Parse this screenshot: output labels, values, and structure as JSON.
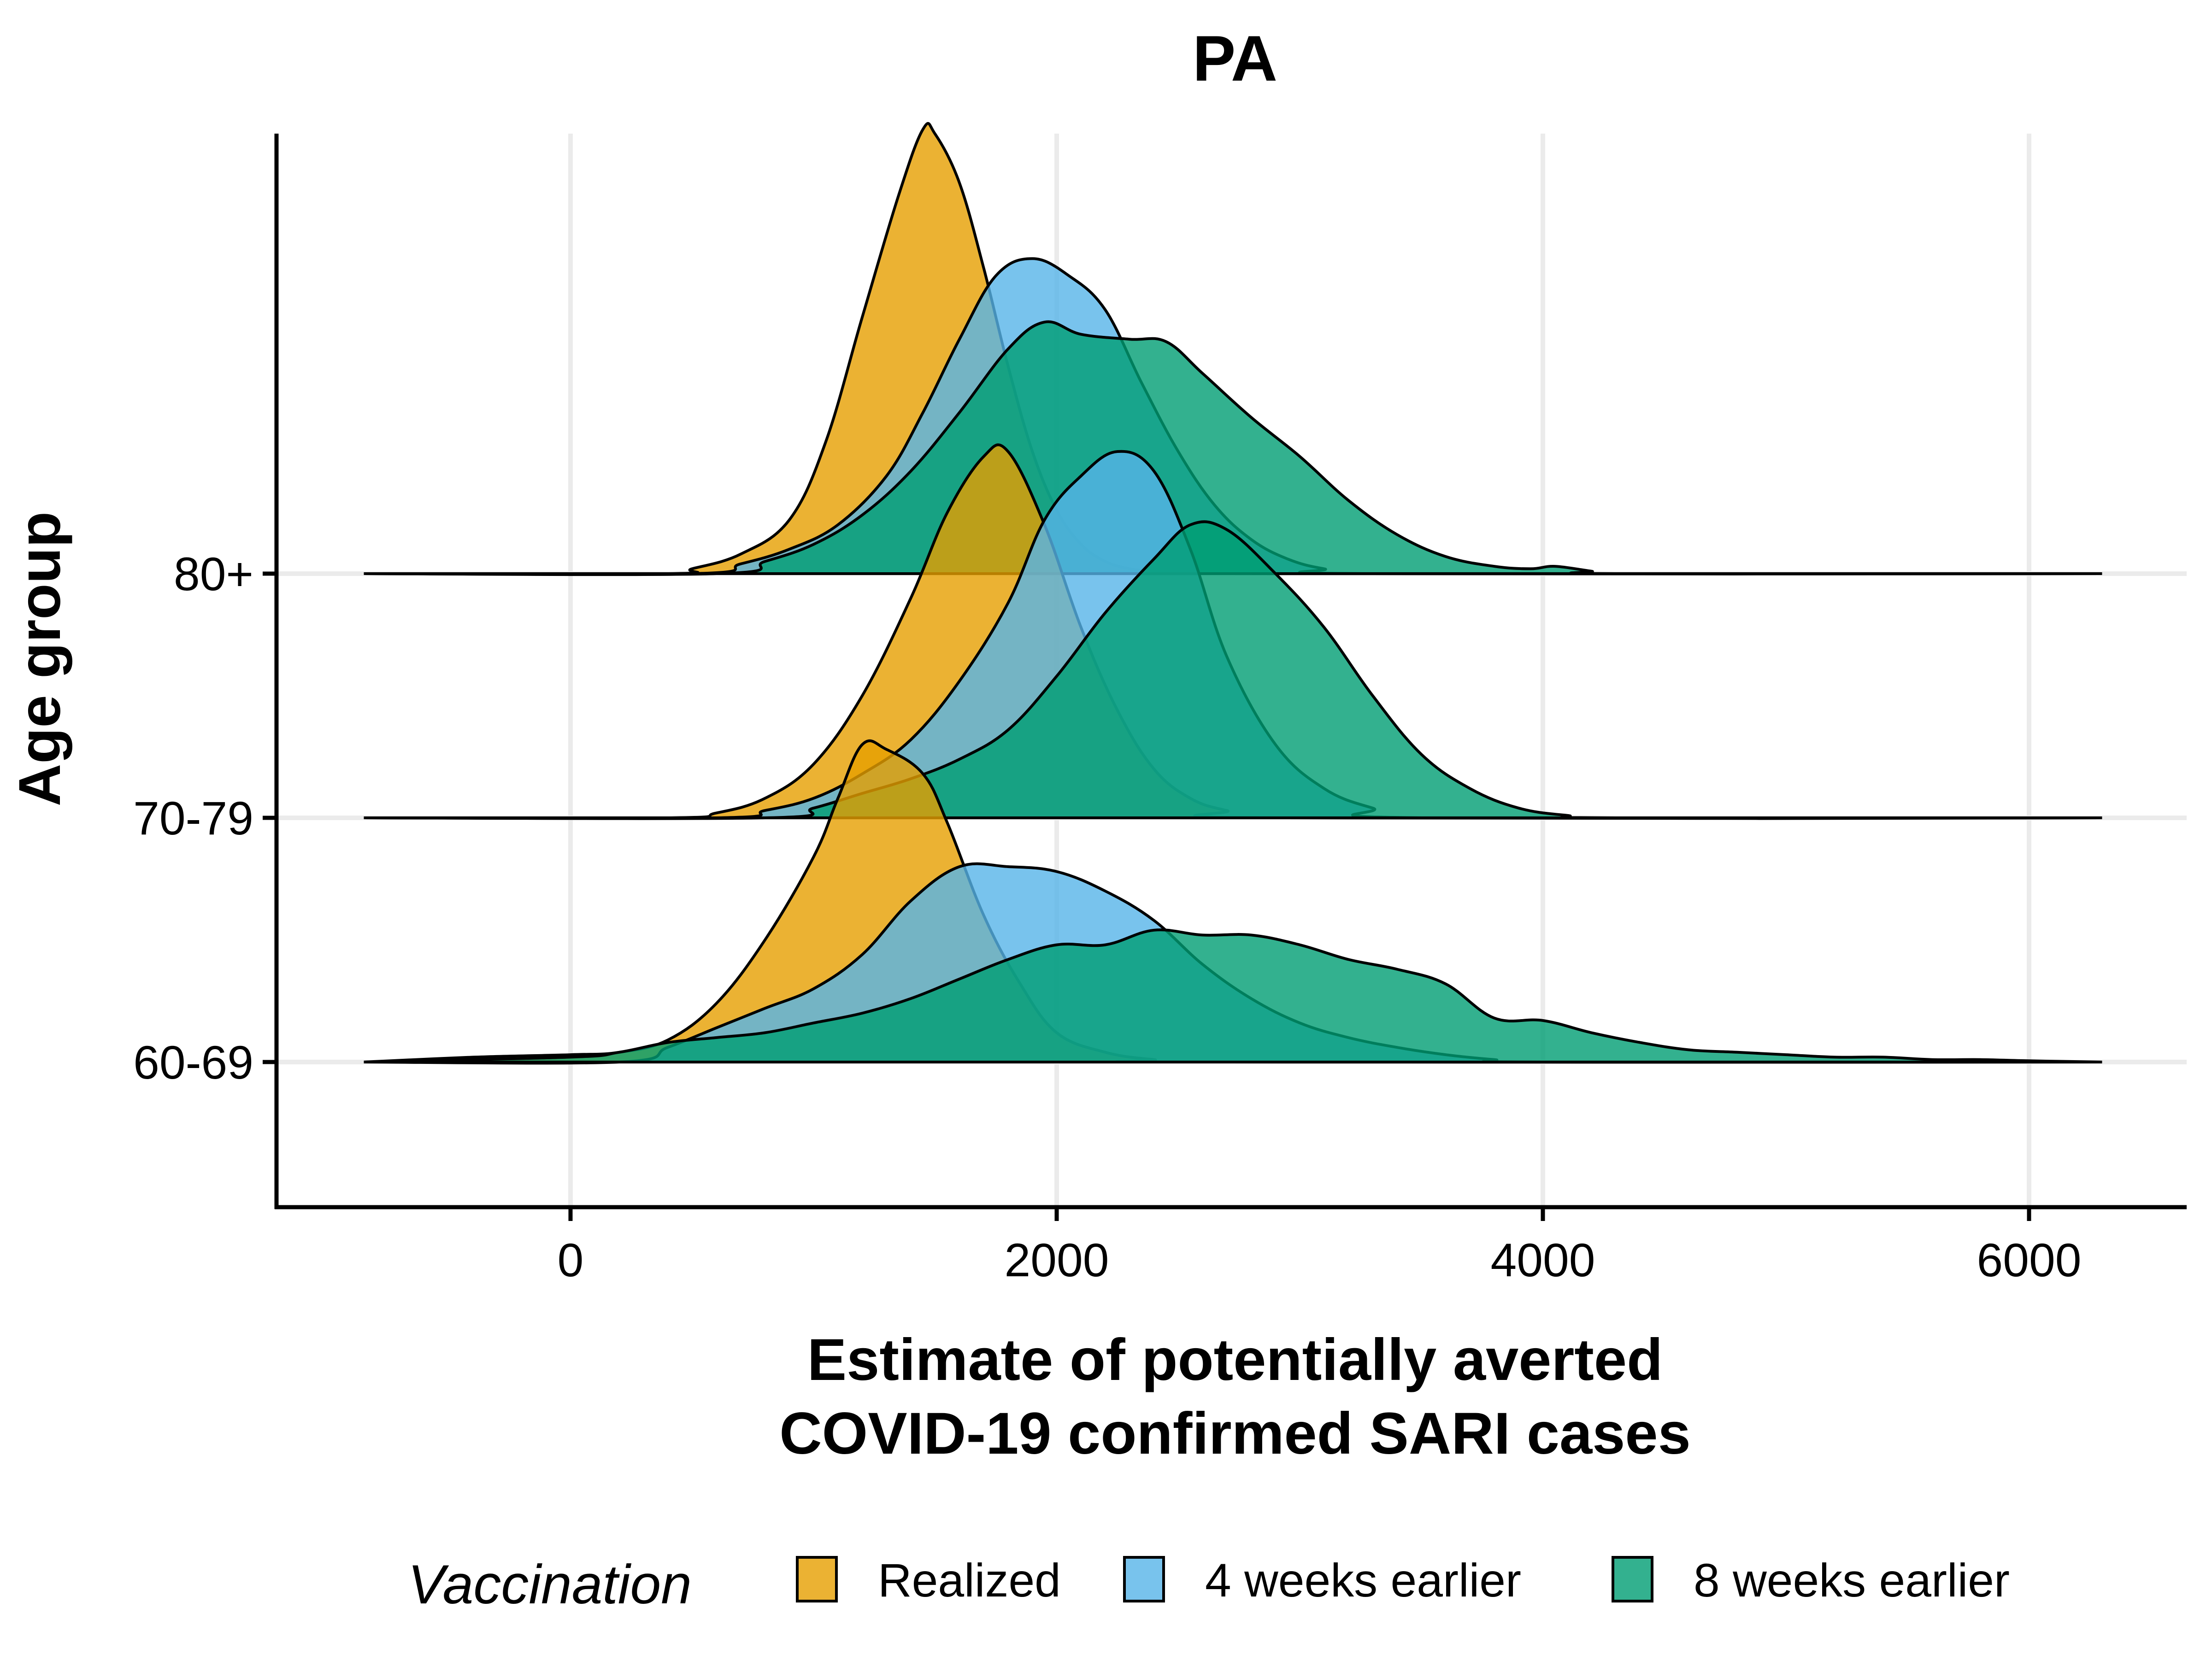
{
  "chart_data": {
    "type": "area",
    "subtype": "ridgeline",
    "title": "PA",
    "xlabel_lines": [
      "Estimate of potentially averted",
      "COVID-19 confirmed SARI cases"
    ],
    "ylabel": "Age group",
    "xlim": [
      -1200,
      6400
    ],
    "x_ticks": [
      0,
      2000,
      4000,
      6000
    ],
    "x_tick_labels": [
      "0",
      "2000",
      "4000",
      "6000"
    ],
    "baseline_x_range": [
      -850,
      6300
    ],
    "grid": true,
    "legend": {
      "title": "Vaccination",
      "position": "bottom",
      "items": [
        {
          "label": "Realized",
          "series": "realized"
        },
        {
          "label": "4 weeks earlier",
          "series": "w4"
        },
        {
          "label": "8 weeks earlier",
          "series": "w8"
        }
      ]
    },
    "colors": {
      "realized": "#E69F00",
      "w4": "#56B4E9",
      "w8": "#009E73"
    },
    "opacity": 0.8,
    "categories": [
      "80+",
      "70-79",
      "60-69"
    ],
    "density_scale_note": "y values are relative density heights in units of the spacing between groups",
    "groups": [
      {
        "category": "80+",
        "series": [
          {
            "key": "realized",
            "x": [
              -850,
              400,
              500,
              700,
              900,
              1050,
              1200,
              1350,
              1450,
              1500,
              1600,
              1700,
              1800,
              1900,
              2000,
              2100,
              2200,
              2300,
              2400,
              2500,
              6300
            ],
            "y": [
              0,
              0,
              0.02,
              0.08,
              0.22,
              0.54,
              1.05,
              1.55,
              1.82,
              1.8,
              1.6,
              1.25,
              0.85,
              0.5,
              0.26,
              0.12,
              0.05,
              0.02,
              0.01,
              0,
              0
            ]
          },
          {
            "key": "w4",
            "x": [
              -850,
              500,
              700,
              900,
              1100,
              1300,
              1450,
              1600,
              1750,
              1900,
              2050,
              2200,
              2350,
              2500,
              2650,
              2800,
              2950,
              3100,
              3300,
              6300
            ],
            "y": [
              0,
              0,
              0.04,
              0.1,
              0.2,
              0.4,
              0.66,
              0.96,
              1.22,
              1.29,
              1.22,
              1.08,
              0.78,
              0.5,
              0.28,
              0.14,
              0.06,
              0.02,
              0,
              0
            ]
          },
          {
            "key": "w8",
            "x": [
              -850,
              600,
              800,
              1000,
              1200,
              1400,
              1600,
              1800,
              1950,
              2100,
              2300,
              2450,
              2600,
              2800,
              3000,
              3200,
              3400,
              3600,
              3800,
              3950,
              4050,
              4200,
              4300,
              6300
            ],
            "y": [
              0,
              0,
              0.05,
              0.12,
              0.24,
              0.42,
              0.66,
              0.92,
              1.03,
              0.98,
              0.96,
              0.95,
              0.82,
              0.64,
              0.48,
              0.3,
              0.16,
              0.07,
              0.03,
              0.02,
              0.03,
              0.01,
              0,
              0
            ]
          }
        ]
      },
      {
        "category": "70-79",
        "series": [
          {
            "key": "realized",
            "x": [
              -850,
              400,
              600,
              800,
              1000,
              1200,
              1400,
              1550,
              1700,
              1800,
              1950,
              2100,
              2250,
              2400,
              2550,
              2700,
              2900,
              6300
            ],
            "y": [
              0,
              0,
              0.02,
              0.08,
              0.22,
              0.5,
              0.9,
              1.25,
              1.48,
              1.5,
              1.2,
              0.78,
              0.44,
              0.2,
              0.08,
              0.03,
              0,
              0
            ]
          },
          {
            "key": "w4",
            "x": [
              -850,
              600,
              800,
              1000,
              1200,
              1400,
              1600,
              1800,
              1950,
              2100,
              2250,
              2400,
              2550,
              2700,
              2900,
              3100,
              3300,
              3500,
              6300
            ],
            "y": [
              0,
              0,
              0.03,
              0.08,
              0.18,
              0.32,
              0.56,
              0.88,
              1.22,
              1.4,
              1.5,
              1.42,
              1.1,
              0.66,
              0.3,
              0.12,
              0.04,
              0,
              0
            ]
          },
          {
            "key": "w8",
            "x": [
              -850,
              800,
              1000,
              1200,
              1400,
              1600,
              1800,
              2000,
              2200,
              2400,
              2550,
              2700,
              2900,
              3100,
              3300,
              3500,
              3700,
              3900,
              4100,
              4300,
              6300
            ],
            "y": [
              0,
              0,
              0.04,
              0.1,
              0.16,
              0.24,
              0.36,
              0.58,
              0.84,
              1.06,
              1.2,
              1.18,
              1.0,
              0.78,
              0.5,
              0.26,
              0.12,
              0.04,
              0.01,
              0,
              0
            ]
          }
        ]
      },
      {
        "category": "60-69",
        "series": [
          {
            "key": "realized",
            "x": [
              -850,
              -400,
              0,
              200,
              400,
              600,
              800,
              1000,
              1100,
              1200,
              1300,
              1450,
              1550,
              1700,
              1850,
              2000,
              2200,
              2400,
              2600,
              6300
            ],
            "y": [
              0,
              0.02,
              0.03,
              0.04,
              0.09,
              0.24,
              0.5,
              0.84,
              1.08,
              1.3,
              1.28,
              1.18,
              0.98,
              0.6,
              0.32,
              0.12,
              0.04,
              0.01,
              0,
              0
            ]
          },
          {
            "key": "w4",
            "x": [
              -850,
              200,
              400,
              600,
              800,
              1000,
              1200,
              1400,
              1600,
              1800,
              2000,
              2200,
              2400,
              2600,
              2800,
              3000,
              3200,
              3400,
              3600,
              3800,
              4000,
              6300
            ],
            "y": [
              0,
              0,
              0.06,
              0.14,
              0.22,
              0.3,
              0.44,
              0.66,
              0.8,
              0.8,
              0.78,
              0.7,
              0.58,
              0.4,
              0.26,
              0.16,
              0.1,
              0.06,
              0.03,
              0.01,
              0,
              0
            ]
          },
          {
            "key": "w8",
            "x": [
              -850,
              0,
              200,
              400,
              600,
              800,
              1000,
              1200,
              1400,
              1600,
              1800,
              2000,
              2200,
              2400,
              2600,
              2800,
              3000,
              3200,
              3400,
              3600,
              3800,
              4000,
              4200,
              4400,
              4600,
              4800,
              5000,
              5200,
              5400,
              5600,
              5800,
              6000,
              6300
            ],
            "y": [
              0,
              0.02,
              0.04,
              0.08,
              0.1,
              0.12,
              0.16,
              0.2,
              0.26,
              0.34,
              0.42,
              0.48,
              0.48,
              0.54,
              0.52,
              0.52,
              0.48,
              0.42,
              0.38,
              0.32,
              0.18,
              0.17,
              0.12,
              0.08,
              0.05,
              0.04,
              0.03,
              0.02,
              0.02,
              0.01,
              0.01,
              0.005,
              0
            ]
          }
        ]
      }
    ]
  }
}
